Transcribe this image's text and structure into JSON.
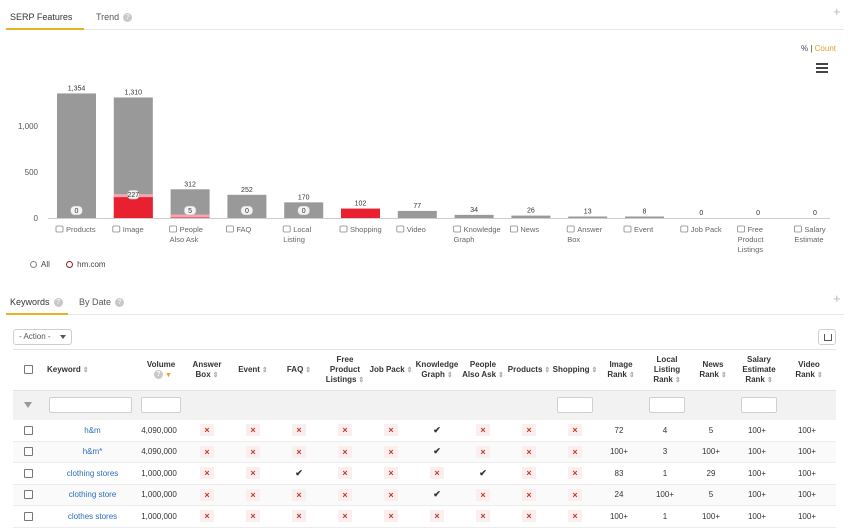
{
  "top_tabs": [
    {
      "label": "SERP Features",
      "active": true
    },
    {
      "label": "Trend",
      "active": false
    }
  ],
  "help_glyph": "?",
  "plus_glyph": "+",
  "toggle": {
    "percent": "%",
    "separator": "|",
    "count": "Count",
    "selected": "Count"
  },
  "chart_data": {
    "type": "bar",
    "categories": [
      "Products",
      "Image",
      "People Also Ask",
      "FAQ",
      "Local Listing",
      "Shopping",
      "Video",
      "Knowledge Graph",
      "News",
      "Answer Box",
      "Event",
      "Job Pack",
      "Free Product Listings",
      "Salary Estimate"
    ],
    "category_lines": [
      [
        "Products"
      ],
      [
        "Image"
      ],
      [
        "People",
        "Also Ask"
      ],
      [
        "FAQ"
      ],
      [
        "Local",
        "Listing"
      ],
      [
        "Shopping"
      ],
      [
        "Video"
      ],
      [
        "Knowledge",
        "Graph"
      ],
      [
        "News"
      ],
      [
        "Answer",
        "Box"
      ],
      [
        "Event"
      ],
      [
        "Job Pack"
      ],
      [
        "Free",
        "Product",
        "Listings"
      ],
      [
        "Salary",
        "Estimate"
      ]
    ],
    "category_icons": [
      "box-icon",
      "image-icon",
      "question-icon",
      "faq-icon",
      "pin-icon",
      "bag-icon",
      "video-icon",
      "graph-icon",
      "news-icon",
      "chat-icon",
      "calendar-icon",
      "briefcase-icon",
      "cart-icon",
      "salary-icon"
    ],
    "series": [
      {
        "name": "All",
        "values": [
          1354,
          1310,
          312,
          252,
          170,
          102,
          77,
          34,
          26,
          13,
          8,
          0,
          0,
          0
        ],
        "labels": [
          "1,354",
          "1,310",
          "312",
          "252",
          "170",
          "102",
          "77",
          "34",
          "26",
          "13",
          "8",
          "0",
          "0",
          "0"
        ],
        "color": "#999999"
      },
      {
        "name": "hm.com",
        "values": [
          0,
          227,
          5,
          0,
          0,
          102,
          0,
          0,
          0,
          0,
          0,
          0,
          0,
          0
        ],
        "labels": [
          "0",
          "227",
          "5",
          "0",
          "0",
          "",
          "",
          "",
          "",
          "",
          "",
          "",
          "",
          ""
        ],
        "color": "#e8202f"
      }
    ],
    "ylim": [
      0,
      1500
    ],
    "yticks": [
      0,
      500,
      1000
    ],
    "ytick_labels": [
      "0",
      "500",
      "1,000"
    ],
    "grid": false,
    "legend_position": "bottom-left"
  },
  "legend": {
    "all": "All",
    "domain": "hm.com"
  },
  "bottom_tabs": [
    {
      "label": "Keywords",
      "active": true
    },
    {
      "label": "By Date",
      "active": false
    }
  ],
  "action_label": "- Action -",
  "table": {
    "columns": [
      {
        "lines": [
          "Keyword"
        ],
        "sort": "⇕"
      },
      {
        "lines": [
          "Volume"
        ],
        "sort": "▼"
      },
      {
        "lines": [
          "Answer",
          "Box"
        ],
        "sort": "⇕"
      },
      {
        "lines": [
          "Event"
        ],
        "sort": "⇕"
      },
      {
        "lines": [
          "FAQ"
        ],
        "sort": "⇕"
      },
      {
        "lines": [
          "Free",
          "Product",
          "Listings"
        ],
        "sort": "⇕"
      },
      {
        "lines": [
          "Job Pack"
        ],
        "sort": "⇕"
      },
      {
        "lines": [
          "Knowledge",
          "Graph"
        ],
        "sort": "⇕"
      },
      {
        "lines": [
          "People",
          "Also Ask"
        ],
        "sort": "⇕"
      },
      {
        "lines": [
          "Products"
        ],
        "sort": "⇕"
      },
      {
        "lines": [
          "Shopping"
        ],
        "sort": "⇕"
      },
      {
        "lines": [
          "Image",
          "Rank"
        ],
        "sort": "⇕"
      },
      {
        "lines": [
          "Local",
          "Listing",
          "Rank"
        ],
        "sort": "⇕"
      },
      {
        "lines": [
          "News",
          "Rank"
        ],
        "sort": "⇕"
      },
      {
        "lines": [
          "Salary",
          "Estimate",
          "Rank"
        ],
        "sort": "⇕"
      },
      {
        "lines": [
          "Video",
          "Rank"
        ],
        "sort": "⇕"
      }
    ],
    "rows": [
      {
        "keyword": "h&m",
        "volume": "4,090,000",
        "features": [
          "x",
          "x",
          "x",
          "x",
          "x",
          "check",
          "x",
          "x",
          "x"
        ],
        "image_rank": "72",
        "local_rank": "4",
        "news_rank": "5",
        "salary_rank": "100+",
        "video_rank": "100+"
      },
      {
        "keyword": "h&m*",
        "volume": "4,090,000",
        "features": [
          "x",
          "x",
          "x",
          "x",
          "x",
          "check",
          "x",
          "x",
          "x"
        ],
        "image_rank": "100+",
        "local_rank": "3",
        "news_rank": "100+",
        "salary_rank": "100+",
        "video_rank": "100+"
      },
      {
        "keyword": "clothing stores",
        "volume": "1,000,000",
        "features": [
          "x",
          "x",
          "check",
          "x",
          "x",
          "x",
          "check",
          "x",
          "x"
        ],
        "image_rank": "83",
        "local_rank": "1",
        "news_rank": "29",
        "salary_rank": "100+",
        "video_rank": "100+"
      },
      {
        "keyword": "clothing store",
        "volume": "1,000,000",
        "features": [
          "x",
          "x",
          "x",
          "x",
          "x",
          "check",
          "x",
          "x",
          "x"
        ],
        "image_rank": "24",
        "local_rank": "100+",
        "news_rank": "5",
        "salary_rank": "100+",
        "video_rank": "100+"
      },
      {
        "keyword": "clothes stores",
        "volume": "1,000,000",
        "features": [
          "x",
          "x",
          "x",
          "x",
          "x",
          "x",
          "x",
          "x",
          "x"
        ],
        "image_rank": "100+",
        "local_rank": "1",
        "news_rank": "100+",
        "salary_rank": "100+",
        "video_rank": "100+"
      }
    ]
  }
}
